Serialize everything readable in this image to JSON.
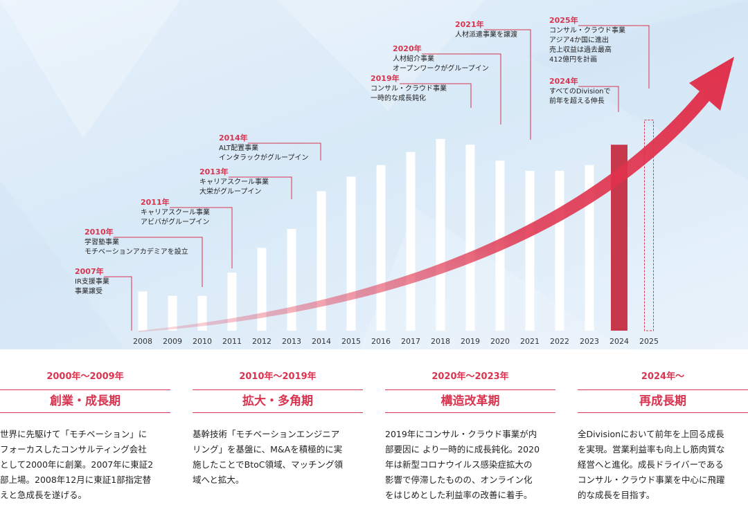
{
  "chart_data": {
    "type": "bar",
    "categories": [
      "2008",
      "2009",
      "2010",
      "2011",
      "2012",
      "2013",
      "2014",
      "2015",
      "2016",
      "2017",
      "2018",
      "2019",
      "2020",
      "2021",
      "2022",
      "2023",
      "2024",
      "2025"
    ],
    "values": [
      27,
      24,
      24,
      40,
      57,
      70,
      96,
      106,
      114,
      123,
      132,
      128,
      117,
      110,
      110,
      114,
      128,
      145
    ],
    "highlight_category": "2024",
    "projected_category": "2025",
    "colors": {
      "bar": "#ffffff",
      "highlight": "#c8384d",
      "accent": "#d8344f",
      "arrow": "#e0314c"
    },
    "annotations": [
      {
        "year": "2007年",
        "lines": [
          "IR支援事業",
          "事業譲受"
        ],
        "category": "2008"
      },
      {
        "year": "2010年",
        "lines": [
          "学習塾事業",
          "モチベーションアカデミアを設立"
        ],
        "category": "2010"
      },
      {
        "year": "2011年",
        "lines": [
          "キャリアスクール事業",
          "アビバがグループイン"
        ],
        "category": "2011"
      },
      {
        "year": "2013年",
        "lines": [
          "キャリアスクール事業",
          "大栄がグループイン"
        ],
        "category": "2013"
      },
      {
        "year": "2014年",
        "lines": [
          "ALT配置事業",
          "インタラックがグループイン"
        ],
        "category": "2014"
      },
      {
        "year": "2019年",
        "lines": [
          "コンサル・クラウド事業",
          "一時的な成長鈍化"
        ],
        "category": "2019"
      },
      {
        "year": "2020年",
        "lines": [
          "人材紹介事業",
          "オープンワークがグループイン"
        ],
        "category": "2020"
      },
      {
        "year": "2021年",
        "lines": [
          "人材派遣事業を譲渡"
        ],
        "category": "2021"
      },
      {
        "year": "2024年",
        "lines": [
          "すべてのDivisionで",
          "前年を超える伸長"
        ],
        "category": "2024"
      },
      {
        "year": "2025年",
        "lines": [
          "コンサル・クラウド事業",
          "アジア4か国に進出",
          "売上収益は過去最高",
          "412億円を計画"
        ],
        "category": "2025"
      }
    ]
  },
  "phases": [
    {
      "period": "2000年～2009年",
      "name": "創業・成長期",
      "desc": [
        "世界に先駆けて「モチベーション」に",
        "フォーカスしたコンサルティング会社",
        "として2000年に創業。2007年に東証2",
        "部上場。2008年12月に東証1部指定替",
        "えと急成長を遂げる。"
      ]
    },
    {
      "period": "2010年～2019年",
      "name": "拡大・多角期",
      "desc": [
        "基幹技術「モチベーションエンジニア",
        "リング」を基盤に、M&Aを積極的に実",
        "施したことでBtoC領域、マッチング領",
        "域へと拡大。"
      ]
    },
    {
      "period": "2020年～2023年",
      "name": "構造改革期",
      "desc": [
        "2019年にコンサル・クラウド事業が内",
        "部要因に より一時的に成長鈍化。2020",
        "年は新型コロナウイルス感染症拡大の",
        "影響で停滞したものの、オンライン化",
        "をはじめとした利益率の改善に着手。"
      ]
    },
    {
      "period": "2024年～",
      "name": "再成長期",
      "desc": [
        "全Divisionにおいて前年を上回る成長",
        "を実現。営業利益率も向上し筋肉質な",
        "経営へと進化。成長ドライバーである",
        "コンサル・クラウド事業を中心に飛躍",
        "的な成長を目指す。"
      ]
    }
  ]
}
